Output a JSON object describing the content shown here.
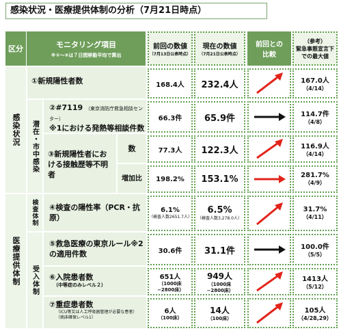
{
  "title": "感染状況・医療提供体制の分析（7月21日時点）",
  "header": {
    "kubun": "区分",
    "item": "モニタリング項目",
    "item_note": "※①～⑤は７日間移動平均で算出",
    "prev": "前回の数値",
    "prev_note": "（7月13日公表時点）",
    "cur": "現在の数値",
    "cur_note": "（7月21日公表時点）",
    "compare": "前回との比較",
    "ref": "（参考）",
    "ref_body": "緊急事態宣言下での最大値"
  },
  "groups": {
    "kansen": "感染状況",
    "senzai": "潜在・市中感染",
    "iryo": "医療提供体制",
    "kensa": "検査体制",
    "ukeire": "受入体制"
  },
  "rows": [
    {
      "label": "①新規陽性者数",
      "prev": "168.4人",
      "cur": "232.4人",
      "arrow": "up",
      "max": "167.0人",
      "max_date": "（4/14）"
    },
    {
      "label_a": "②#7119",
      "label_b": "（東京消防庁救急相談センター）",
      "label_c": "※1における発熱等相談件数",
      "prev": "66.3件",
      "cur": "65.9件",
      "arrow": "flat",
      "max": "114.7件",
      "max_date": "（4/8）"
    },
    {
      "label": "③新規陽性者における接触歴等不明者",
      "sub": "数",
      "prev": "77.3人",
      "cur": "122.3人",
      "arrow": "up",
      "max": "116.9人",
      "max_date": "（4/14）"
    },
    {
      "sub": "増加比",
      "prev": "198.2%",
      "cur": "153.1%",
      "arrow": "right-red",
      "max": "281.7%",
      "max_date": "（4/9）"
    },
    {
      "label": "④検査の陽性率（PCR・抗原）",
      "prev": "6.1%",
      "prev_note": "（検査人数2651.7人）",
      "cur": "6.5%",
      "cur_note": "（検査人数3,278.0人）",
      "arrow": "up",
      "max": "31.7%",
      "max_date": "（4/11）"
    },
    {
      "label": "⑤救急医療の東京ルール※2の適用件数",
      "prev": "30.6件",
      "cur": "31.1件",
      "arrow": "flat",
      "max": "100.0件",
      "max_date": "（5/5）"
    },
    {
      "label": "⑥入院患者数",
      "label_note": "（中等症のみレベル２）",
      "prev": "651人",
      "prev_note": "（1000床−2800床）",
      "cur": "949人",
      "cur_note": "（1000床−2800床）",
      "arrow": "up",
      "max": "1413人",
      "max_date": "（5/12）"
    },
    {
      "label": "⑦重症患者数",
      "label_note": "（ICU等又は人工呼吸器管理が必要な患者）（病床確保レベル1）",
      "prev": "6人",
      "prev_note": "（100床）",
      "cur": "14人",
      "cur_note": "（100床）",
      "arrow": "up",
      "max": "105人",
      "max_date": "（4/28,29）"
    }
  ]
}
